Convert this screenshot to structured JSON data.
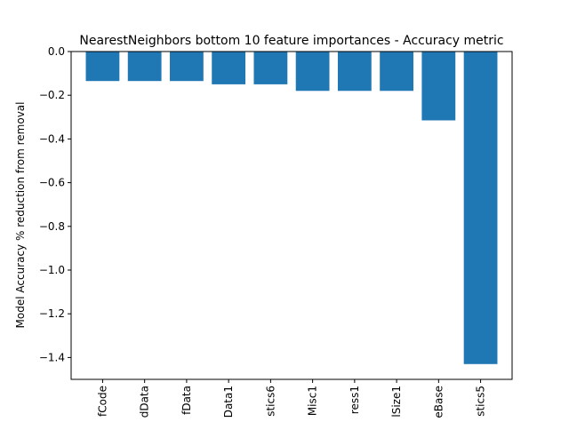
{
  "chart_data": {
    "type": "bar",
    "title": "NearestNeighbors bottom 10 feature importances - Accuracy metric",
    "xlabel": "",
    "ylabel": "Model Accuracy % reduction from removal",
    "ylim": [
      -1.5,
      0.0
    ],
    "yticks": [
      0.0,
      -0.2,
      -0.4,
      -0.6,
      -0.8,
      -1.0,
      -1.2,
      -1.4
    ],
    "ytick_labels": [
      "0.0",
      "−0.2",
      "−0.4",
      "−0.6",
      "−0.8",
      "−1.0",
      "−1.2",
      "−1.4"
    ],
    "categories": [
      "fCode",
      "dData",
      "fData",
      "Data1",
      "stics6",
      "Misc1",
      "ress1",
      "lSize1",
      "eBase",
      "stics5"
    ],
    "values": [
      -0.135,
      -0.135,
      -0.135,
      -0.15,
      -0.15,
      -0.18,
      -0.18,
      -0.18,
      -0.315,
      -1.43
    ],
    "bar_color": "#1f77b4",
    "grid": false,
    "legend": "none"
  }
}
